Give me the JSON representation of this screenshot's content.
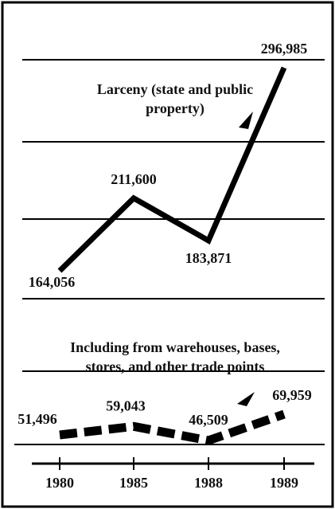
{
  "chart_data": {
    "type": "line",
    "categories": [
      "1980",
      "1985",
      "1988",
      "1989"
    ],
    "series": [
      {
        "name": "Larceny (state and public property)",
        "color": "#000000",
        "values": [
          164056,
          211600,
          183871,
          296985
        ],
        "value_labels": [
          "164,056",
          "211,600",
          "183,871",
          "296,985"
        ]
      },
      {
        "name": "Including from warehouses, bases, stores, and other trade points",
        "color": "#000000",
        "values": [
          51496,
          59043,
          46509,
          69959
        ],
        "value_labels": [
          "51,496",
          "59,043",
          "46,509",
          "69,959"
        ]
      }
    ],
    "grid": true
  }
}
